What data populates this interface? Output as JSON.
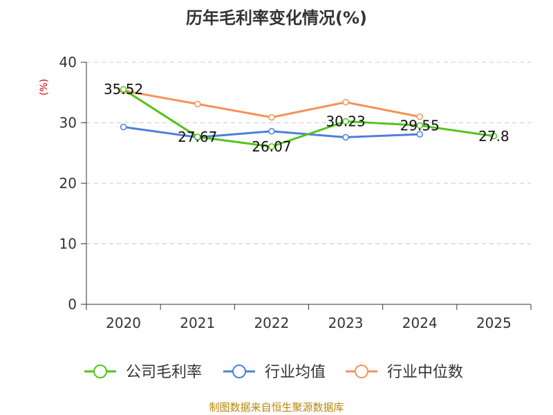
{
  "chart_data": {
    "type": "line",
    "title": "历年毛利率变化情况(%)",
    "xlabel": "",
    "ylabel": "(%)",
    "categories": [
      "2020",
      "2021",
      "2022",
      "2023",
      "2024",
      "2025"
    ],
    "ylim": [
      0,
      40
    ],
    "yticks": [
      0,
      10,
      20,
      30,
      40
    ],
    "grid": true,
    "legend_position": "bottom",
    "series": [
      {
        "name": "公司毛利率",
        "color": "#52c41a",
        "values": [
          35.52,
          27.67,
          26.07,
          30.23,
          29.55,
          27.8
        ],
        "labels": [
          "35.52",
          "27.67",
          "26.07",
          "30.23",
          "29.55",
          "27.8"
        ]
      },
      {
        "name": "行业均值",
        "color": "#4f7fd8",
        "values": [
          29.3,
          27.6,
          28.6,
          27.6,
          28.1,
          null
        ]
      },
      {
        "name": "行业中位数",
        "color": "#f5925a",
        "values": [
          35.3,
          33.1,
          30.9,
          33.4,
          31.0,
          null
        ]
      }
    ]
  },
  "source": "制图数据来自恒生聚源数据库"
}
